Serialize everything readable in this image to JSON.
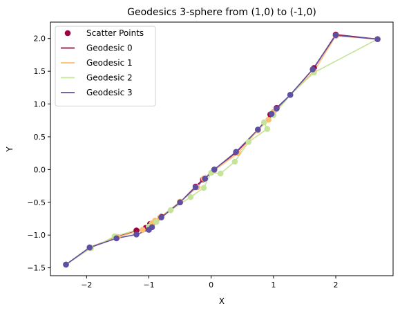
{
  "chart_data": {
    "type": "line",
    "title": "Geodesics 3-sphere from (1,0) to (-1,0)",
    "xlabel": "X",
    "ylabel": "Y",
    "xlim": [
      -2.58,
      2.92
    ],
    "ylim": [
      -1.62,
      2.25
    ],
    "xticks": [
      -2,
      -1,
      0,
      1,
      2
    ],
    "yticks": [
      -1.5,
      -1.0,
      -0.5,
      0.0,
      0.5,
      1.0,
      1.5,
      2.0
    ],
    "xtick_labels": [
      "−2",
      "−1",
      "0",
      "1",
      "2"
    ],
    "ytick_labels": [
      "−1.5",
      "−1.0",
      "−0.5",
      "0.0",
      "0.5",
      "1.0",
      "1.5",
      "2.0"
    ],
    "grid": false,
    "legend_position": "upper-left",
    "legend": [
      {
        "label": "Scatter Points",
        "kind": "marker",
        "color": "#9e0142"
      },
      {
        "label": "Geodesic 0",
        "kind": "line",
        "color": "#9e0142"
      },
      {
        "label": "Geodesic 1",
        "kind": "line",
        "color": "#fdbf6f"
      },
      {
        "label": "Geodesic 2",
        "kind": "line",
        "color": "#c6e39a"
      },
      {
        "label": "Geodesic 3",
        "kind": "line",
        "color": "#5e4fa2"
      }
    ],
    "series": [
      {
        "color": "#9e0142",
        "points": [
          [
            -2.33,
            -1.45
          ],
          [
            -1.95,
            -1.19
          ],
          [
            -1.52,
            -1.03
          ],
          [
            -1.2,
            -0.93
          ],
          [
            -1.05,
            -0.89
          ],
          [
            -0.98,
            -0.83
          ],
          [
            -0.8,
            -0.72
          ],
          [
            -0.5,
            -0.5
          ],
          [
            -0.25,
            -0.26
          ],
          [
            -0.13,
            -0.15
          ],
          [
            0.05,
            0.0
          ],
          [
            0.4,
            0.26
          ],
          [
            0.75,
            0.6
          ],
          [
            0.95,
            0.84
          ],
          [
            1.05,
            0.94
          ],
          [
            1.27,
            1.14
          ],
          [
            1.65,
            1.55
          ],
          [
            2.0,
            2.06
          ],
          [
            2.67,
            1.99
          ]
        ]
      },
      {
        "color": "#fdbf6f",
        "points": [
          [
            -2.33,
            -1.45
          ],
          [
            -1.95,
            -1.19
          ],
          [
            -1.5,
            -1.03
          ],
          [
            -1.1,
            -0.92
          ],
          [
            -0.95,
            -0.82
          ],
          [
            -0.9,
            -0.78
          ],
          [
            -0.82,
            -0.73
          ],
          [
            -0.5,
            -0.49
          ],
          [
            -0.22,
            -0.27
          ],
          [
            -0.12,
            -0.14
          ],
          [
            0.05,
            -0.01
          ],
          [
            0.43,
            0.25
          ],
          [
            0.75,
            0.6
          ],
          [
            0.92,
            0.76
          ],
          [
            1.0,
            0.88
          ],
          [
            1.27,
            1.14
          ],
          [
            1.65,
            1.5
          ],
          [
            2.0,
            2.04
          ],
          [
            2.67,
            1.99
          ]
        ]
      },
      {
        "color": "#c6e39a",
        "points": [
          [
            -2.33,
            -1.45
          ],
          [
            -1.93,
            -1.2
          ],
          [
            -1.55,
            -1.02
          ],
          [
            -1.0,
            -0.87
          ],
          [
            -0.88,
            -0.8
          ],
          [
            -0.65,
            -0.62
          ],
          [
            -0.33,
            -0.42
          ],
          [
            -0.12,
            -0.28
          ],
          [
            0.0,
            -0.05
          ],
          [
            0.15,
            -0.06
          ],
          [
            0.38,
            0.12
          ],
          [
            0.6,
            0.42
          ],
          [
            0.9,
            0.62
          ],
          [
            0.85,
            0.72
          ],
          [
            1.0,
            0.83
          ],
          [
            1.27,
            1.14
          ],
          [
            1.65,
            1.48
          ],
          [
            2.67,
            1.99
          ]
        ]
      },
      {
        "color": "#5e4fa2",
        "points": [
          [
            -2.33,
            -1.45
          ],
          [
            -1.95,
            -1.19
          ],
          [
            -1.52,
            -1.05
          ],
          [
            -1.2,
            -0.99
          ],
          [
            -1.0,
            -0.92
          ],
          [
            -0.95,
            -0.88
          ],
          [
            -0.8,
            -0.73
          ],
          [
            -0.5,
            -0.5
          ],
          [
            -0.25,
            -0.27
          ],
          [
            -0.1,
            -0.14
          ],
          [
            0.05,
            0.0
          ],
          [
            0.4,
            0.27
          ],
          [
            0.75,
            0.61
          ],
          [
            0.97,
            0.85
          ],
          [
            1.05,
            0.93
          ],
          [
            1.27,
            1.14
          ],
          [
            1.63,
            1.53
          ],
          [
            2.0,
            2.05
          ],
          [
            2.67,
            1.99
          ]
        ]
      }
    ]
  }
}
